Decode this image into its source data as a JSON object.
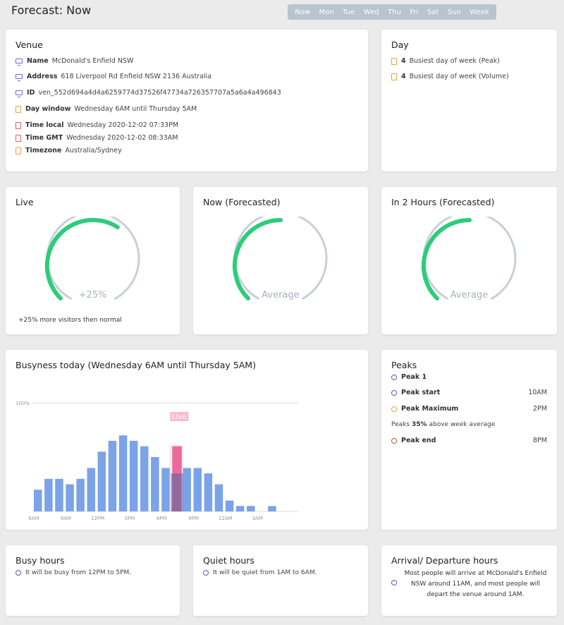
{
  "header": {
    "title": "Forecast: Now",
    "tabs": [
      "Now",
      "Mon",
      "Tue",
      "Wed",
      "Thu",
      "Fri",
      "Sat",
      "Sun",
      "Week"
    ]
  },
  "venue": {
    "title": "Venue",
    "rows": [
      {
        "icon": "monitor",
        "label": "Name",
        "value": "McDonald's Enfield NSW"
      },
      {
        "icon": "monitor",
        "label": "Address",
        "value": "618 Liverpool Rd Enfield NSW 2136 Australia"
      },
      {
        "icon": "monitor",
        "label": "ID",
        "value": "ven_552d694a4d4a6259774d37526f47734a726357707a5a6a4a496843"
      },
      {
        "icon": "calendar",
        "label": "Day window",
        "value": "Wednesday 6AM until Thursday 5AM"
      },
      {
        "icon": "clock",
        "label": "Time local",
        "value": "Wednesday 2020-12-02 07:33PM"
      },
      {
        "icon": "clock",
        "label": "Time GMT",
        "value": "Wednesday 2020-12-02 08:33AM"
      },
      {
        "icon": "calendar",
        "label": "Timezone",
        "value": "Australia/Sydney"
      }
    ]
  },
  "day": {
    "title": "Day",
    "rows": [
      {
        "icon": "calendar",
        "label": "4",
        "value": "Busiest day of week (Peak)"
      },
      {
        "icon": "calendar",
        "label": "4",
        "value": "Busiest day of week (Volume)"
      }
    ]
  },
  "live": {
    "title": "Live",
    "gauge_label": "+25%",
    "note": "+25% more visitors then normal",
    "level": 0.62
  },
  "now_forecast": {
    "title": "Now (Forecasted)",
    "gauge_label": "Average",
    "level": 0.5
  },
  "in2h_forecast": {
    "title": "In 2 Hours (Forecasted)",
    "gauge_label": "Average",
    "level": 0.5
  },
  "busyness": {
    "title": "Busyness today (Wednesday 6AM until Thursday 5AM)"
  },
  "chart_data": {
    "type": "bar",
    "title": "Busyness today (Wednesday 6AM until Thursday 5AM)",
    "ytick": "100%",
    "ylim": [
      0,
      100
    ],
    "live_label": "Live",
    "x_tick_labels": [
      "6AM",
      "9AM",
      "12PM",
      "3PM",
      "6PM",
      "9PM",
      "12AM",
      "3AM"
    ],
    "categories": [
      "6AM",
      "7AM",
      "8AM",
      "9AM",
      "10AM",
      "11AM",
      "12PM",
      "1PM",
      "2PM",
      "3PM",
      "4PM",
      "5PM",
      "6PM",
      "7PM",
      "8PM",
      "9PM",
      "10PM",
      "11PM",
      "12AM",
      "1AM",
      "2AM",
      "3AM",
      "4AM",
      "5AM"
    ],
    "series": [
      {
        "values": [
          20,
          30,
          30,
          25,
          30,
          40,
          55,
          65,
          70,
          65,
          60,
          50,
          40,
          35,
          40,
          40,
          35,
          25,
          10,
          5,
          5,
          0,
          5,
          0
        ]
      }
    ],
    "live": {
      "index": 13,
      "value": 60
    }
  },
  "peaks": {
    "title": "Peaks",
    "peak_name": "Peak 1",
    "start_label": "Peak start",
    "start_value": "10AM",
    "max_label": "Peak Maximum",
    "max_value": "2PM",
    "above_prefix": "Peaks",
    "above_pct": "35%",
    "above_suffix": "above week average",
    "end_label": "Peak end",
    "end_value": "8PM"
  },
  "busy_hours": {
    "title": "Busy hours",
    "text": "It will be busy from 12PM to 5PM."
  },
  "quiet_hours": {
    "title": "Quiet hours",
    "text": "It will be quiet from 1AM to 6AM."
  },
  "arrival": {
    "title": "Arrival/ Departure hours",
    "text": "Most people will arrive at McDonald's Enfield NSW around 11AM, and most people will depart the venue around 1AM."
  },
  "colors": {
    "gauge_fill": "#2ecc7a",
    "gauge_track": "#c8d0d8",
    "bar": "#7aa3e8",
    "live": "#e8548a"
  }
}
